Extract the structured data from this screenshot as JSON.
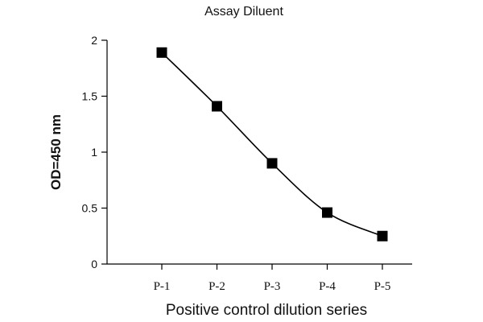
{
  "chart_data": {
    "type": "line",
    "title": "Assay Diluent",
    "xlabel": "Positive control dilution series",
    "ylabel": "OD=450 nm",
    "categories": [
      "P-1",
      "P-2",
      "P-3",
      "P-4",
      "P-5"
    ],
    "series": [
      {
        "values": [
          1.89,
          1.41,
          0.9,
          0.46,
          0.25
        ],
        "marker": "square",
        "color": "#000000"
      }
    ],
    "ylim": [
      0,
      2
    ],
    "yticks": [
      "0",
      "0.5",
      "1",
      "1.5",
      "2"
    ],
    "grid": false,
    "legend": "none"
  }
}
